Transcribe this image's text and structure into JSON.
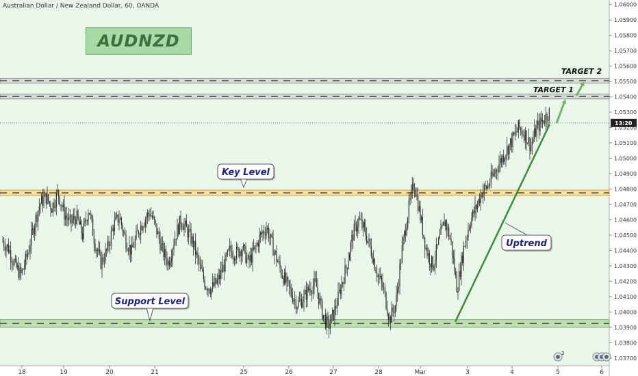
{
  "header": "Australian Dollar / New Zealand Dollar, 60, OANDA",
  "symbol": "AUDNZD",
  "price_label": "13:20",
  "badge_count": "3",
  "colors": {
    "background": "#e9f6ea",
    "candle": "#2f2f2f",
    "trendline": "#3d8b37",
    "arrow": "#74b364",
    "key_band": "#f4dc9a",
    "support_band": "#b9dcaa"
  },
  "chart_data": {
    "type": "candlestick",
    "instrument": "AUDNZD",
    "timeframe": "60",
    "source": "OANDA",
    "x_ticks": [
      "18",
      "19",
      "20",
      "21",
      "25",
      "26",
      "27",
      "28",
      "Mar",
      "3",
      "4",
      "5",
      "6"
    ],
    "y_ticks": [
      "1.06000",
      "1.05900",
      "1.05800",
      "1.05700",
      "1.05600",
      "1.05500",
      "1.05400",
      "1.05300",
      "1.05200",
      "1.05100",
      "1.05000",
      "1.04900",
      "1.04800",
      "1.04700",
      "1.04600",
      "1.04500",
      "1.04400",
      "1.04300",
      "1.04200",
      "1.04100",
      "1.04000",
      "1.03900",
      "1.03800",
      "1.03700"
    ],
    "ylim": [
      1.0365,
      1.0603
    ],
    "levels": [
      {
        "label": "TARGET 2",
        "price": 1.05505
      },
      {
        "label": "TARGET 1",
        "price": 1.05402
      },
      {
        "label": "Key Level",
        "price": 1.04775
      },
      {
        "label": "Support Level",
        "price": 1.03925
      }
    ],
    "current_price": 1.0523,
    "annotations": [
      "Key Level",
      "Support Level",
      "Uptrend",
      "TARGET 1",
      "TARGET 2"
    ],
    "trendline": {
      "label": "Uptrend",
      "from": [
        "Feb 28",
        1.03935
      ],
      "to": [
        "Mar 4",
        1.0523
      ]
    },
    "price_path": [
      1.0446,
      1.0441,
      1.043,
      1.0424,
      1.0437,
      1.0455,
      1.047,
      1.0475,
      1.0468,
      1.0478,
      1.0464,
      1.0458,
      1.0462,
      1.045,
      1.0468,
      1.0445,
      1.0432,
      1.044,
      1.0456,
      1.0462,
      1.0447,
      1.0439,
      1.0452,
      1.046,
      1.0465,
      1.0454,
      1.044,
      1.0432,
      1.0448,
      1.046,
      1.0453,
      1.0445,
      1.043,
      1.0418,
      1.0415,
      1.042,
      1.043,
      1.044,
      1.0438,
      1.0442,
      1.0432,
      1.044,
      1.045,
      1.0455,
      1.0442,
      1.043,
      1.042,
      1.0412,
      1.0405,
      1.0409,
      1.0416,
      1.0418,
      1.04,
      1.039,
      1.04,
      1.0415,
      1.043,
      1.045,
      1.046,
      1.0452,
      1.044,
      1.0425,
      1.0415,
      1.0395,
      1.0405,
      1.044,
      1.0465,
      1.0485,
      1.0462,
      1.044,
      1.043,
      1.0445,
      1.046,
      1.0445,
      1.0415,
      1.044,
      1.0458,
      1.0467,
      1.0478,
      1.0482,
      1.049,
      1.0498,
      1.0505,
      1.0512,
      1.052,
      1.0516,
      1.0508,
      1.052,
      1.0525,
      1.053
    ]
  }
}
